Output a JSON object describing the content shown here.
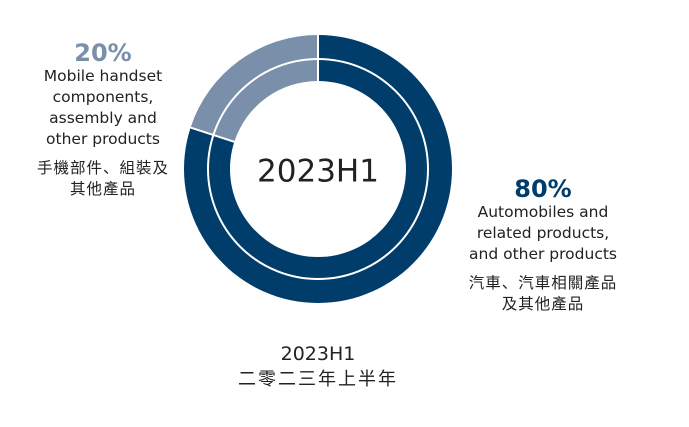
{
  "colors": {
    "automobiles": "#003d6b",
    "mobile": "#7a8faa"
  },
  "chart_data": {
    "type": "pie",
    "center_label": "2023H1",
    "slices": [
      {
        "name_en": "Mobile handset components, assembly and other products",
        "name_zh": "手機部件、組裝及其他產品",
        "value": 20,
        "label": "20%",
        "color": "#7a8faa"
      },
      {
        "name_en": "Automobiles and related products, and other products",
        "name_zh": "汽車、汽車相關產品及其他產品",
        "value": 80,
        "label": "80%",
        "color": "#003d6b"
      }
    ]
  },
  "labels": {
    "left": {
      "pct": "20%",
      "en_lines": [
        "Mobile handset",
        "components,",
        "assembly and",
        "other products"
      ],
      "zh_lines": [
        "手機部件、組裝及",
        "其他產品"
      ]
    },
    "right": {
      "pct": "80%",
      "en_lines": [
        "Automobiles and",
        "related products,",
        "and other products"
      ],
      "zh_lines": [
        "汽車、汽車相關產品",
        "及其他產品"
      ]
    }
  },
  "caption": {
    "line1": "2023H1",
    "line2": "二零二三年上半年"
  }
}
